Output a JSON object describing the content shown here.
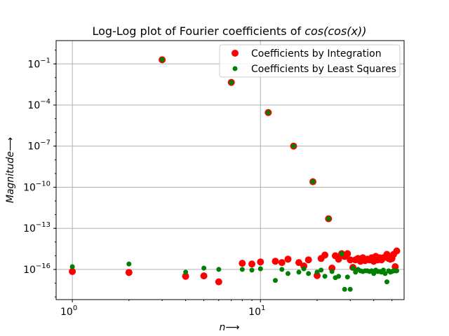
{
  "chart_data": {
    "type": "scatter",
    "title": {
      "prefix": "Log-Log plot of Fourier coefficients of ",
      "math": "cos(cos(x))"
    },
    "xlabel": "n",
    "ylabel": "Magnitude",
    "arrow": "⟶",
    "xscale": "log",
    "yscale": "log",
    "xlim": [
      0.82,
      58
    ],
    "ylim_exp": [
      -18.2,
      0.7
    ],
    "grid": true,
    "legend": "top-right",
    "x_ticks": [
      {
        "value": 1,
        "base": "10",
        "exp": "0"
      },
      {
        "value": 10,
        "base": "10",
        "exp": "1"
      }
    ],
    "y_ticks": [
      {
        "exp_value": -1,
        "base": "10",
        "exp": "−1"
      },
      {
        "exp_value": -4,
        "base": "10",
        "exp": "−4"
      },
      {
        "exp_value": -7,
        "base": "10",
        "exp": "−7"
      },
      {
        "exp_value": -10,
        "base": "10",
        "exp": "−10"
      },
      {
        "exp_value": -13,
        "base": "10",
        "exp": "−13"
      },
      {
        "exp_value": -16,
        "base": "10",
        "exp": "−16"
      }
    ],
    "series": [
      {
        "name": "Coefficients by Integration",
        "color": "#ff0000",
        "marker_radius": 5,
        "points": [
          [
            1,
            -16.15
          ],
          [
            2,
            -16.22
          ],
          [
            3,
            -0.7
          ],
          [
            4,
            -16.5
          ],
          [
            5,
            -16.47
          ],
          [
            6,
            -16.9
          ],
          [
            7,
            -2.35
          ],
          [
            8,
            -15.55
          ],
          [
            9,
            -15.6
          ],
          [
            10,
            -15.45
          ],
          [
            11,
            -4.55
          ],
          [
            12,
            -15.4
          ],
          [
            13,
            -15.5
          ],
          [
            14,
            -15.25
          ],
          [
            15,
            -7.0
          ],
          [
            16,
            -15.5
          ],
          [
            17,
            -15.75
          ],
          [
            18,
            -15.3
          ],
          [
            19,
            -9.6
          ],
          [
            20,
            -16.45
          ],
          [
            21,
            -15.2
          ],
          [
            22,
            -14.95
          ],
          [
            23,
            -12.3
          ],
          [
            24,
            -15.9
          ],
          [
            25,
            -15.0
          ],
          [
            26,
            -15.25
          ],
          [
            27,
            -14.85
          ],
          [
            28,
            -15.05
          ],
          [
            29,
            -14.85
          ],
          [
            30,
            -15.3
          ],
          [
            31,
            -15.85
          ],
          [
            32,
            -15.3
          ],
          [
            33,
            -15.2
          ],
          [
            34,
            -15.4
          ],
          [
            35,
            -15.15
          ],
          [
            36,
            -15.35
          ],
          [
            37,
            -15.25
          ],
          [
            38,
            -15.3
          ],
          [
            39,
            -15.15
          ],
          [
            40,
            -15.4
          ],
          [
            41,
            -15.05
          ],
          [
            42,
            -15.3
          ],
          [
            43,
            -15.15
          ],
          [
            44,
            -15.3
          ],
          [
            45,
            -15.15
          ],
          [
            46,
            -15.1
          ],
          [
            47,
            -14.9
          ],
          [
            48,
            -15.2
          ],
          [
            49,
            -15.25
          ],
          [
            50,
            -15.2
          ],
          [
            51,
            -14.9
          ],
          [
            52,
            -15.8
          ],
          [
            53,
            -14.65
          ]
        ]
      },
      {
        "name": "Coefficients by Least Squares",
        "color": "#008000",
        "marker_radius": 3.5,
        "points": [
          [
            1,
            -15.8
          ],
          [
            2,
            -15.6
          ],
          [
            3,
            -0.7
          ],
          [
            4,
            -16.2
          ],
          [
            5,
            -15.9
          ],
          [
            6,
            -16.0
          ],
          [
            7,
            -2.35
          ],
          [
            8,
            -16.0
          ],
          [
            9,
            -16.05
          ],
          [
            10,
            -15.95
          ],
          [
            11,
            -4.55
          ],
          [
            12,
            -16.8
          ],
          [
            13,
            -16.0
          ],
          [
            14,
            -16.3
          ],
          [
            15,
            -7.0
          ],
          [
            16,
            -16.2
          ],
          [
            17,
            -15.95
          ],
          [
            18,
            -16.3
          ],
          [
            19,
            -9.6
          ],
          [
            20,
            -16.2
          ],
          [
            21,
            -16.05
          ],
          [
            22,
            -16.5
          ],
          [
            23,
            -12.3
          ],
          [
            24,
            -16.15
          ],
          [
            25,
            -16.6
          ],
          [
            26,
            -16.5
          ],
          [
            27,
            -14.85
          ],
          [
            28,
            -17.45
          ],
          [
            29,
            -16.55
          ],
          [
            30,
            -17.45
          ],
          [
            31,
            -15.9
          ],
          [
            32,
            -16.2
          ],
          [
            33,
            -16.0
          ],
          [
            34,
            -16.1
          ],
          [
            35,
            -16.15
          ],
          [
            36,
            -16.1
          ],
          [
            37,
            -16.1
          ],
          [
            38,
            -16.15
          ],
          [
            39,
            -16.1
          ],
          [
            40,
            -16.3
          ],
          [
            41,
            -16.05
          ],
          [
            42,
            -16.15
          ],
          [
            43,
            -16.15
          ],
          [
            44,
            -16.2
          ],
          [
            45,
            -16.05
          ],
          [
            46,
            -16.3
          ],
          [
            47,
            -16.9
          ],
          [
            48,
            -16.1
          ],
          [
            49,
            -16.2
          ],
          [
            50,
            -16.15
          ],
          [
            51,
            -16.1
          ],
          [
            52,
            -16.1
          ],
          [
            53,
            -16.1
          ]
        ]
      }
    ]
  }
}
